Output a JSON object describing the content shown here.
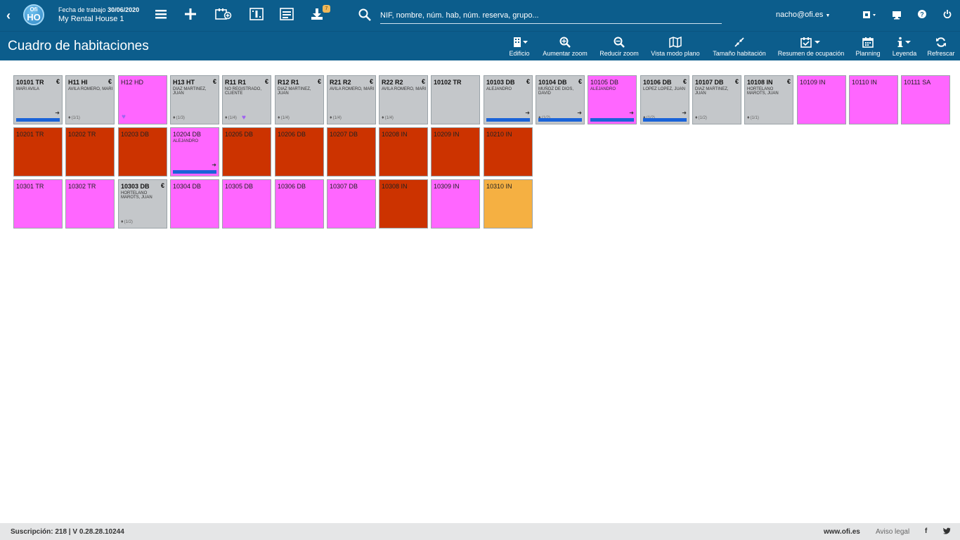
{
  "header": {
    "logo_top": "Ofi",
    "logo_main": "HO",
    "work_date_label": "Fecha de trabajo",
    "work_date": "30/06/2020",
    "hotel_name": "My Rental House 1",
    "download_badge": "7",
    "search_placeholder": "NIF, nombre, núm. hab, núm. reserva, grupo...",
    "user": "nacho@ofi.es"
  },
  "toolbar": {
    "page_title": "Cuadro de habitaciones",
    "items": [
      {
        "label": "Edificio",
        "icon": "building-icon"
      },
      {
        "label": "Aumentar zoom",
        "icon": "zoom-in-icon"
      },
      {
        "label": "Reducir zoom",
        "icon": "zoom-out-icon"
      },
      {
        "label": "Vista modo plano",
        "icon": "map-icon"
      },
      {
        "label": "Tamaño habitación",
        "icon": "compress-icon"
      },
      {
        "label": "Resumen de ocupación",
        "icon": "calendar-check-icon"
      },
      {
        "label": "Planning",
        "icon": "calendar-icon"
      },
      {
        "label": "Leyenda",
        "icon": "info-icon"
      },
      {
        "label": "Refrescar",
        "icon": "refresh-icon"
      }
    ]
  },
  "status_colors": {
    "occupied": "#c4c7ca",
    "available": "#ff66ff",
    "blocked": "#cc3300",
    "pending": "#f5b042",
    "checkout_bar": "#1a63d8",
    "header": "#0c5d8c"
  },
  "rooms": {
    "row1": [
      {
        "name": "10101 TR",
        "status": "occupied",
        "euro": "€",
        "guest": "MARI AVILA",
        "bar": true,
        "exit": true
      },
      {
        "name": "H11 HI",
        "status": "occupied",
        "euro": "€",
        "guest": "AVILA ROMERO, MARI",
        "pax": "(1/1)"
      },
      {
        "name": "H12 HD",
        "status": "available",
        "dog": true
      },
      {
        "name": "H13 HT",
        "status": "occupied",
        "euro": "€",
        "guest": "DIAZ MARTINEZ, JUAN",
        "pax": "(1/3)"
      },
      {
        "name": "R11 R1",
        "status": "occupied",
        "euro": "€",
        "guest": "NO REGISTRADO, CLIENTE",
        "pax": "(1/4)",
        "dog": true
      },
      {
        "name": "R12 R1",
        "status": "occupied",
        "euro": "€",
        "guest": "DIAZ MARTINEZ, JUAN",
        "pax": "(1/4)"
      },
      {
        "name": "R21 R2",
        "status": "occupied",
        "euro": "€",
        "guest": "AVILA ROMERO, MARI",
        "pax": "(1/4)"
      },
      {
        "name": "R22 R2",
        "status": "occupied",
        "euro": "€",
        "guest": "AVILA ROMERO, MARI",
        "pax": "(1/4)"
      },
      {
        "name": "10102 TR",
        "status": "occupied"
      },
      {
        "name": "10103 DB",
        "status": "occupied",
        "euro": "€",
        "guest": "ALEJANDRO",
        "bar": true,
        "exit": true
      },
      {
        "name": "10104 DB",
        "status": "occupied",
        "euro": "€",
        "guest": "MUÑOZ DE DIOS, DAVID",
        "pax": "(1/2)",
        "bar": true,
        "exit": true
      },
      {
        "name": "10105 DB",
        "status": "available",
        "guest": "ALEJANDRO",
        "bar": true,
        "exit": true
      },
      {
        "name": "10106 DB",
        "status": "occupied",
        "euro": "€",
        "guest": "LOPEZ LOPEZ, JUAN",
        "pax": "(1/2)",
        "bar": true,
        "exit": true
      },
      {
        "name": "10107 DB",
        "status": "occupied",
        "euro": "€",
        "guest": "DIAZ MARTINEZ, JUAN",
        "pax": "(1/2)"
      },
      {
        "name": "10108 IN",
        "status": "occupied",
        "euro": "€",
        "guest": "HORTELANO MAROTS, JUAN",
        "pax": "(1/1)"
      },
      {
        "name": "10109 IN",
        "status": "available"
      },
      {
        "name": "10110 IN",
        "status": "available"
      },
      {
        "name": "10111 SA",
        "status": "available"
      }
    ],
    "row2": [
      {
        "name": "10201 TR",
        "status": "blocked"
      },
      {
        "name": "10202 TR",
        "status": "blocked"
      },
      {
        "name": "10203 DB",
        "status": "blocked"
      },
      {
        "name": "10204 DB",
        "status": "available",
        "guest": "ALEJANDRO",
        "bar": true,
        "exit": true
      },
      {
        "name": "10205 DB",
        "status": "blocked"
      },
      {
        "name": "10206 DB",
        "status": "blocked"
      },
      {
        "name": "10207 DB",
        "status": "blocked"
      },
      {
        "name": "10208 IN",
        "status": "blocked"
      },
      {
        "name": "10209 IN",
        "status": "blocked"
      },
      {
        "name": "10210 IN",
        "status": "blocked"
      }
    ],
    "row3": [
      {
        "name": "10301 TR",
        "status": "available"
      },
      {
        "name": "10302 TR",
        "status": "available"
      },
      {
        "name": "10303 DB",
        "status": "occupied",
        "euro": "€",
        "guest": "HORTELANO MAROTS, JUAN",
        "pax": "(1/2)"
      },
      {
        "name": "10304 DB",
        "status": "available"
      },
      {
        "name": "10305 DB",
        "status": "available"
      },
      {
        "name": "10306 DB",
        "status": "available"
      },
      {
        "name": "10307 DB",
        "status": "available"
      },
      {
        "name": "10308 IN",
        "status": "blocked"
      },
      {
        "name": "10309 IN",
        "status": "available"
      },
      {
        "name": "10310 IN",
        "status": "pending"
      }
    ]
  },
  "footer": {
    "subscription": "Suscripción: 218 | V 0.28.28.10244",
    "site": "www.ofi.es",
    "legal": "Aviso legal",
    "facebook": "f",
    "twitter": "t"
  }
}
